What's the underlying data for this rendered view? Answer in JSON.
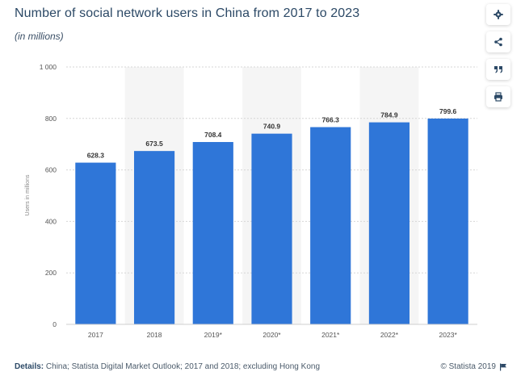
{
  "header": {
    "title": "Number of social network users in China from 2017 to 2023",
    "subtitle": "(in millions)"
  },
  "toolbar": {
    "settings_icon": "gear-icon",
    "share_icon": "share-icon",
    "cite_icon": "quote-icon",
    "print_icon": "print-icon"
  },
  "footer": {
    "details_label": "Details:",
    "details_text": "China; Statista Digital Market Outlook; 2017 and 2018; excluding Hong Kong",
    "credit": "© Statista 2019",
    "flag_icon": "flag-icon"
  },
  "colors": {
    "bar": "#2f76d8",
    "band": "#f5f5f5",
    "title": "#2c4966"
  },
  "chart_data": {
    "type": "bar",
    "categories": [
      "2017",
      "2018",
      "2019*",
      "2020*",
      "2021*",
      "2022*",
      "2023*"
    ],
    "values": [
      628.3,
      673.5,
      708.4,
      740.9,
      766.3,
      784.9,
      799.6
    ],
    "data_labels": [
      "628.3",
      "673.5",
      "708.4",
      "740.9",
      "766.3",
      "784.9",
      "799.6"
    ],
    "ylabel": "Users in millions",
    "ylim": [
      0,
      1000
    ],
    "yticks": [
      0,
      200,
      400,
      600,
      800,
      1000
    ],
    "ytick_labels": [
      "0",
      "200",
      "400",
      "600",
      "800",
      "1 000"
    ],
    "grid": true
  }
}
